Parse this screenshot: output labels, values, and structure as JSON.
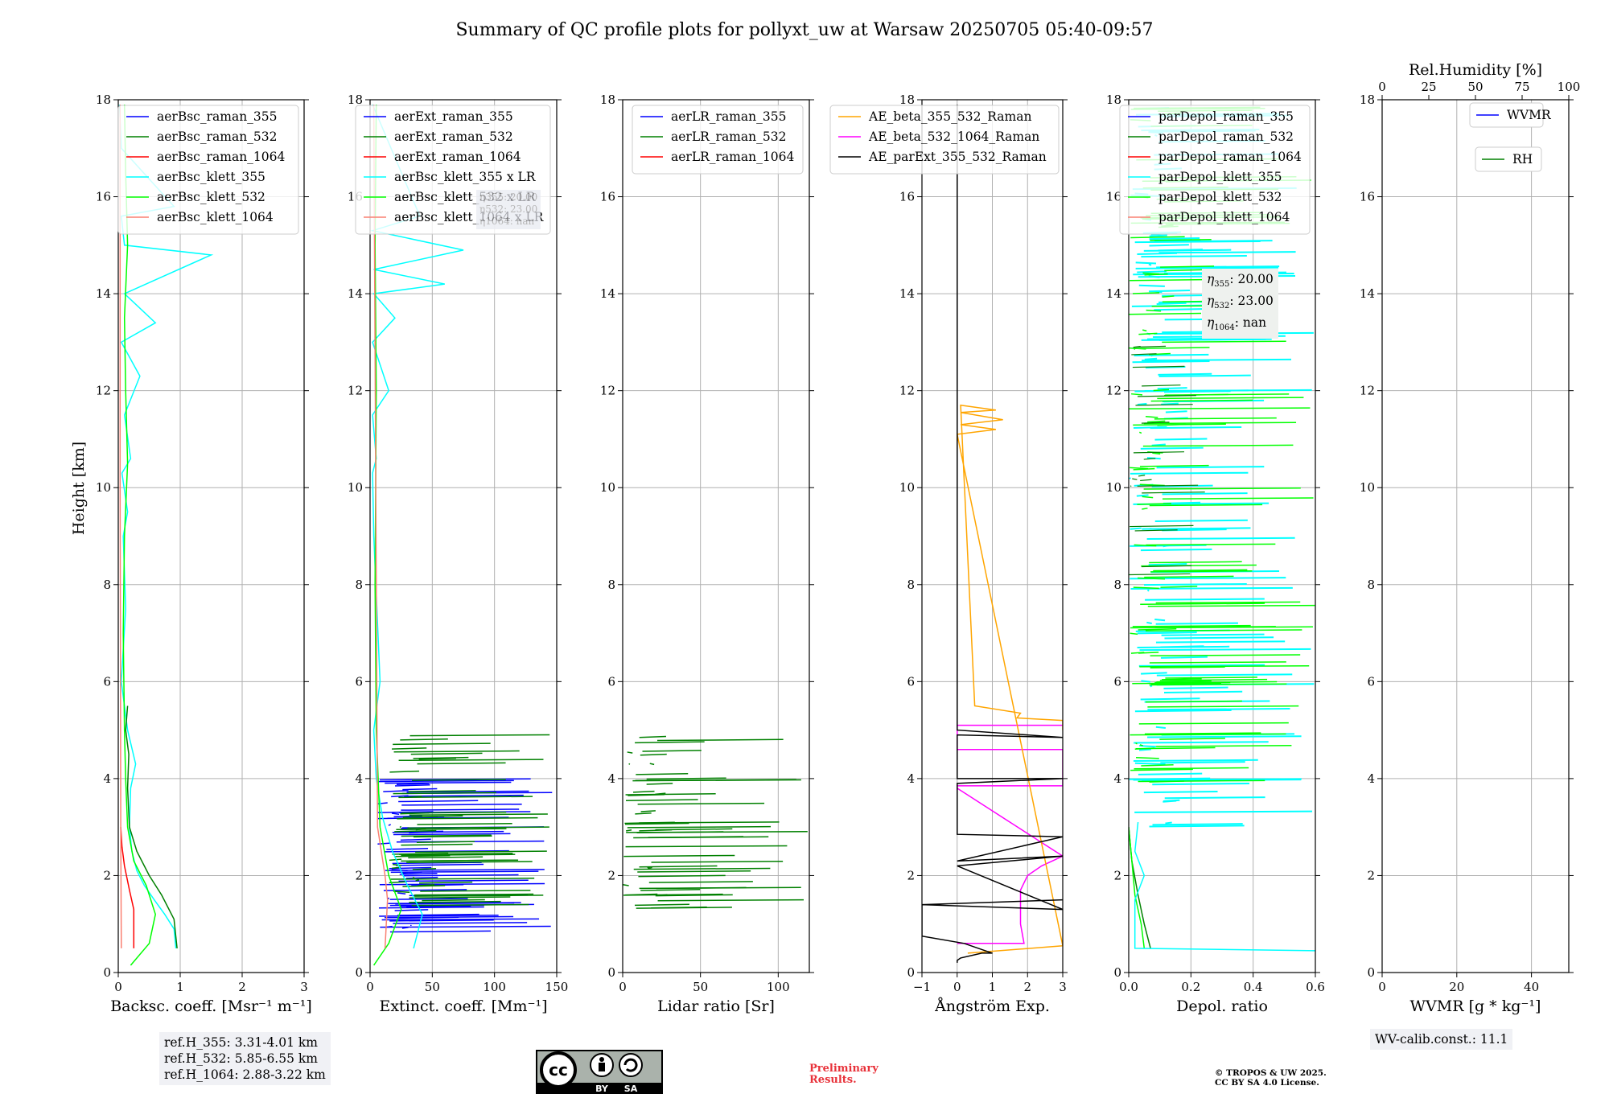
{
  "title": "Summary of QC profile plots for pollyxt_uw at Warsaw 20250705 05:40-09:57",
  "ylabel": "Height [km]",
  "reference_heights": [
    "ref.H_355: 3.31-4.01 km",
    "ref.H_532: 5.85-6.55 km",
    "ref.H_1064: 2.88-3.22 km"
  ],
  "wv_calib": "WV-calib.const.: 11.1",
  "preliminary": [
    "Preliminary",
    "Results."
  ],
  "copyright": [
    "© TROPOS & UW 2025.",
    "CC BY SA 4.0 License."
  ],
  "cc_badge": {
    "by": "BY",
    "sa": "SA"
  },
  "eta_box": [
    {
      "sym": "η",
      "sub": "355",
      "val": ": 20.00"
    },
    {
      "sym": "η",
      "sub": "532",
      "val": ": 23.00"
    },
    {
      "sym": "η",
      "sub": "1064",
      "val": ": nan"
    }
  ],
  "hidden_box": [
    "η355: 20.00",
    "η532: 23.00",
    "η1064: nan"
  ],
  "colors": {
    "blue": "#0000ff",
    "green": "#008000",
    "red": "#ff0000",
    "cyan": "#00ffff",
    "lime": "#00ff00",
    "salmon": "#fa8072",
    "orange": "#ffa500",
    "magenta": "#ff00ff",
    "black": "#000000"
  },
  "chart_data": [
    {
      "type": "line",
      "id": "bsc",
      "xlabel": "Backsc. coeff. [Msr⁻¹ m⁻¹]",
      "xlim": [
        0,
        3
      ],
      "xticks": [
        0,
        1,
        2,
        3
      ],
      "xtick_labels": [
        "0",
        "1",
        "2",
        "3"
      ],
      "ylim": [
        0,
        18
      ],
      "yticks": [
        0,
        2,
        4,
        6,
        8,
        10,
        12,
        14,
        16,
        18
      ],
      "legend": [
        {
          "label": "aerBsc_raman_355",
          "color": "blue"
        },
        {
          "label": "aerBsc_raman_532",
          "color": "green"
        },
        {
          "label": "aerBsc_raman_1064",
          "color": "red"
        },
        {
          "label": "aerBsc_klett_355",
          "color": "cyan"
        },
        {
          "label": "aerBsc_klett_532",
          "color": "lime"
        },
        {
          "label": "aerBsc_klett_1064",
          "color": "salmon"
        }
      ],
      "series": [
        {
          "name": "aerBsc_klett_355",
          "color": "cyan",
          "x": [
            0.93,
            0.9,
            0.75,
            0.58,
            0.42,
            0.3,
            0.22,
            0.18,
            0.2,
            0.28,
            0.15,
            0.05,
            0.12,
            0.08,
            0.15,
            0.06,
            0.2,
            0.1,
            0.35,
            0.05,
            0.6,
            0.1,
            1.5,
            0.1,
            0.05,
            0.9,
            0.05,
            0.02
          ],
          "y": [
            0.5,
            0.9,
            1.2,
            1.5,
            1.8,
            2.1,
            2.5,
            3.0,
            3.8,
            4.3,
            5.0,
            6.0,
            7.5,
            9.0,
            9.5,
            10.3,
            10.6,
            11.5,
            12.3,
            13.0,
            13.4,
            14.0,
            14.8,
            15.0,
            15.6,
            15.8,
            17.0,
            17.9
          ]
        },
        {
          "name": "aerBsc_raman_532",
          "color": "green",
          "x": [
            0.95,
            0.9,
            0.7,
            0.5,
            0.3,
            0.18,
            0.15,
            0.17,
            0.12,
            0.15
          ],
          "y": [
            0.5,
            1.1,
            1.6,
            2.0,
            2.5,
            3.0,
            3.8,
            4.5,
            5.0,
            5.5
          ]
        },
        {
          "name": "aerBsc_klett_532",
          "color": "lime",
          "x": [
            0.2,
            0.5,
            0.6,
            0.45,
            0.25,
            0.15,
            0.12,
            0.1,
            0.08,
            0.1,
            0.15,
            0.12,
            0.1,
            0.15,
            0.12,
            0.1
          ],
          "y": [
            0.15,
            0.6,
            1.2,
            1.8,
            2.3,
            3.0,
            4.0,
            5.0,
            7.0,
            9.0,
            10.5,
            12.0,
            13.5,
            15.0,
            16.5,
            17.9
          ]
        },
        {
          "name": "aerBsc_raman_1064",
          "color": "red",
          "x": [
            0.25,
            0.25,
            0.18,
            0.1,
            0.06,
            0.04
          ],
          "y": [
            0.5,
            1.3,
            1.7,
            2.2,
            2.6,
            3.0
          ]
        },
        {
          "name": "aerBsc_klett_1064",
          "color": "salmon",
          "x": [
            0.05,
            0.04,
            0.03,
            0.03
          ],
          "y": [
            0.5,
            3.0,
            10.0,
            17.9
          ]
        }
      ]
    },
    {
      "type": "line",
      "id": "ext",
      "xlabel": "Extinct. coeff. [Mm⁻¹]",
      "xlim": [
        0,
        150
      ],
      "xticks": [
        0,
        50,
        100,
        150
      ],
      "xtick_labels": [
        "0",
        "50",
        "100",
        "150"
      ],
      "ylim": [
        0,
        18
      ],
      "yticks": [
        0,
        2,
        4,
        6,
        8,
        10,
        12,
        14,
        16,
        18
      ],
      "legend": [
        {
          "label": "aerExt_raman_355",
          "color": "blue"
        },
        {
          "label": "aerExt_raman_532",
          "color": "green"
        },
        {
          "label": "aerExt_raman_1064",
          "color": "red"
        },
        {
          "label": "aerBsc_klett_355 x LR",
          "color": "cyan"
        },
        {
          "label": "aerBsc_klett_532 x LR",
          "color": "lime"
        },
        {
          "label": "aerBsc_klett_1064 x LR",
          "color": "salmon"
        }
      ],
      "series": [
        {
          "name": "aerBsc_klett_355 x LR",
          "color": "cyan",
          "x": [
            35,
            42,
            30,
            18,
            10,
            5,
            3,
            8,
            3,
            2,
            5,
            2,
            15,
            2,
            20,
            3,
            60,
            3,
            75,
            2,
            40,
            2
          ],
          "y": [
            0.5,
            1.2,
            1.8,
            2.5,
            3.2,
            4.0,
            5.0,
            6.0,
            9.0,
            10.3,
            10.6,
            11.5,
            12.0,
            13.0,
            13.5,
            14.0,
            14.2,
            14.5,
            14.9,
            15.3,
            15.6,
            17.9
          ]
        },
        {
          "name": "aerBsc_klett_532 x LR",
          "color": "lime",
          "x": [
            3,
            15,
            25,
            15,
            8,
            5,
            4,
            5,
            4,
            5
          ],
          "y": [
            0.15,
            0.6,
            1.3,
            2.0,
            3.0,
            5.0,
            8.0,
            12.0,
            15.0,
            17.9
          ]
        },
        {
          "name": "aerBsc_klett_1064 x LR",
          "color": "salmon",
          "x": [
            12,
            14,
            12,
            6,
            3
          ],
          "y": [
            0.5,
            1.5,
            2.0,
            3.0,
            17.9
          ]
        }
      ]
    },
    {
      "type": "line",
      "id": "lr",
      "xlabel": "Lidar ratio [Sr]",
      "xlim": [
        0,
        120
      ],
      "xticks": [
        0,
        50,
        100
      ],
      "xtick_labels": [
        "0",
        "50",
        "100"
      ],
      "ylim": [
        0,
        18
      ],
      "yticks": [
        0,
        2,
        4,
        6,
        8,
        10,
        12,
        14,
        16,
        18
      ],
      "legend": [
        {
          "label": "aerLR_raman_355",
          "color": "blue"
        },
        {
          "label": "aerLR_raman_532",
          "color": "green"
        },
        {
          "label": "aerLR_raman_1064",
          "color": "red"
        }
      ],
      "series": []
    },
    {
      "type": "line",
      "id": "ae",
      "xlabel": "Ångström Exp.",
      "xlim": [
        -1,
        3
      ],
      "xticks": [
        -1,
        0,
        1,
        2,
        3
      ],
      "xtick_labels": [
        "−1",
        "0",
        "1",
        "2",
        "3"
      ],
      "ylim": [
        0,
        18
      ],
      "yticks": [
        0,
        2,
        4,
        6,
        8,
        10,
        12,
        14,
        16,
        18
      ],
      "legend": [
        {
          "label": "AE_beta_355_532_Raman",
          "color": "orange"
        },
        {
          "label": "AE_beta_532_1064_Raman",
          "color": "magenta"
        },
        {
          "label": "AE_parExt_355_532_Raman",
          "color": "black"
        }
      ],
      "series": [
        {
          "name": "AE_beta_532_1064_Raman",
          "color": "magenta",
          "x": [
            0,
            1.9,
            1.8,
            1.8,
            2.0,
            2.4,
            3.0,
            0,
            0,
            3.0,
            3.0,
            0,
            0,
            3.0
          ],
          "y": [
            0.6,
            0.6,
            1.0,
            1.7,
            2.0,
            2.2,
            2.4,
            3.8,
            3.85,
            3.85,
            4.6,
            4.6,
            5.1,
            5.1
          ]
        },
        {
          "name": "AE_beta_355_532_Raman",
          "color": "orange",
          "x": [
            0.3,
            3.0,
            0,
            1.1,
            0.1,
            1.3,
            0.1,
            1.1,
            0.1,
            0.5,
            1.8,
            1.7,
            3.0,
            3.0
          ],
          "y": [
            0.4,
            0.55,
            11.1,
            11.2,
            11.3,
            11.4,
            11.55,
            11.6,
            11.7,
            5.5,
            5.35,
            5.25,
            5.2,
            5.0
          ]
        },
        {
          "name": "AE_parExt_355_532_Raman",
          "color": "black",
          "x": [
            0,
            0,
            0.1,
            0.7,
            1.0,
            0.2,
            -1,
            -1,
            3.0,
            -1,
            3.0,
            0,
            3.0,
            0,
            3.0,
            0,
            0,
            3.0,
            0,
            0,
            3.0,
            0,
            0
          ],
          "y": [
            0.2,
            0.25,
            0.3,
            0.4,
            0.4,
            0.6,
            0.75,
            1.4,
            1.5,
            1.4,
            1.3,
            2.2,
            2.4,
            2.3,
            2.8,
            2.85,
            3.9,
            4.0,
            4.0,
            4.9,
            4.85,
            5.0,
            17.9
          ]
        }
      ]
    },
    {
      "type": "line",
      "id": "depol",
      "xlabel": "Depol. ratio",
      "xlim": [
        0,
        0.6
      ],
      "xticks": [
        0,
        0.2,
        0.4,
        0.6
      ],
      "xtick_labels": [
        "0.0",
        "0.2",
        "0.4",
        "0.6"
      ],
      "ylim": [
        0,
        18
      ],
      "yticks": [
        0,
        2,
        4,
        6,
        8,
        10,
        12,
        14,
        16,
        18
      ],
      "legend": [
        {
          "label": "parDepol_raman_355",
          "color": "blue"
        },
        {
          "label": "parDepol_raman_532",
          "color": "green"
        },
        {
          "label": "parDepol_raman_1064",
          "color": "red"
        },
        {
          "label": "parDepol_klett_355",
          "color": "cyan"
        },
        {
          "label": "parDepol_klett_532",
          "color": "lime"
        },
        {
          "label": "parDepol_klett_1064",
          "color": "salmon"
        }
      ],
      "series": [
        {
          "name": "parDepol_raman_532",
          "color": "green",
          "x": [
            0.07,
            0.05,
            0.03,
            0.01,
            0.0
          ],
          "y": [
            0.5,
            1.0,
            1.6,
            2.3,
            3.0
          ]
        },
        {
          "name": "parDepol_klett_532",
          "color": "lime",
          "x": [
            0.05,
            0.04,
            0.02,
            0.01,
            0.0
          ],
          "y": [
            0.5,
            1.0,
            1.6,
            2.3,
            3.0
          ]
        },
        {
          "name": "parDepol_klett_355",
          "color": "cyan",
          "x": [
            0.6,
            0.02,
            0.02,
            0.05,
            0.02,
            0.03
          ],
          "y": [
            0.45,
            0.5,
            1.5,
            2.0,
            2.5,
            3.1
          ]
        }
      ]
    },
    {
      "type": "line",
      "id": "wv",
      "xlabel": "WVMR [g * kg⁻¹]",
      "xlim": [
        0,
        50
      ],
      "xticks": [
        0,
        20,
        40
      ],
      "xtick_labels": [
        "0",
        "20",
        "40"
      ],
      "top_xlabel": "Rel.Humidity [%]",
      "top_xlim": [
        0,
        100
      ],
      "top_xticks": [
        0,
        25,
        50,
        75,
        100
      ],
      "top_xtick_labels": [
        "0",
        "25",
        "50",
        "75",
        "100"
      ],
      "ylim": [
        0,
        18
      ],
      "yticks": [
        0,
        2,
        4,
        6,
        8,
        10,
        12,
        14,
        16,
        18
      ],
      "legend": [
        {
          "label": "WVMR",
          "color": "blue"
        },
        {
          "label": "RH",
          "color": "green"
        }
      ],
      "series": []
    }
  ]
}
